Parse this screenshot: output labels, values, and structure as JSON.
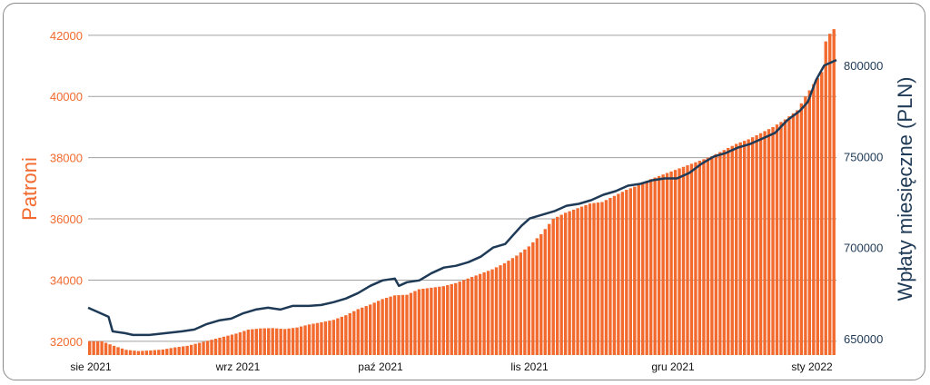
{
  "chart_data": {
    "type": "bar+line",
    "x_range": [
      "2021-08-01",
      "2022-01-31"
    ],
    "x_tick_labels": [
      "sie 2021",
      "wrz 2021",
      "paź 2021",
      "lis 2021",
      "gru 2021",
      "sty 2022"
    ],
    "y_left": {
      "label": "Patroni",
      "range": [
        31550,
        42500
      ],
      "ticks": [
        32000,
        34000,
        36000,
        38000,
        40000,
        42000
      ]
    },
    "y_right": {
      "label": "Wpłaty miesięczne (PLN)",
      "range": [
        641000,
        825000
      ],
      "ticks": [
        650000,
        700000,
        750000,
        800000
      ]
    },
    "grid": "horizontal",
    "colors": {
      "bars": "#f26a2e",
      "line": "#1f3a56",
      "grid": "#a0a0a0"
    },
    "series": [
      {
        "axis": "left",
        "kind": "bar",
        "points": [
          [
            "2021-08-01",
            32000
          ],
          [
            "2021-08-04",
            32000
          ],
          [
            "2021-08-07",
            31850
          ],
          [
            "2021-08-10",
            31720
          ],
          [
            "2021-08-13",
            31680
          ],
          [
            "2021-08-16",
            31700
          ],
          [
            "2021-08-19",
            31730
          ],
          [
            "2021-08-22",
            31800
          ],
          [
            "2021-08-25",
            31850
          ],
          [
            "2021-08-28",
            31950
          ],
          [
            "2021-08-31",
            32050
          ],
          [
            "2021-09-03",
            32150
          ],
          [
            "2021-09-06",
            32250
          ],
          [
            "2021-09-09",
            32380
          ],
          [
            "2021-09-12",
            32420
          ],
          [
            "2021-09-15",
            32430
          ],
          [
            "2021-09-18",
            32400
          ],
          [
            "2021-09-21",
            32450
          ],
          [
            "2021-09-24",
            32550
          ],
          [
            "2021-09-27",
            32620
          ],
          [
            "2021-09-30",
            32700
          ],
          [
            "2021-10-03",
            32850
          ],
          [
            "2021-10-06",
            33050
          ],
          [
            "2021-10-09",
            33200
          ],
          [
            "2021-10-12",
            33380
          ],
          [
            "2021-10-15",
            33500
          ],
          [
            "2021-10-18",
            33520
          ],
          [
            "2021-10-21",
            33700
          ],
          [
            "2021-10-24",
            33750
          ],
          [
            "2021-10-27",
            33800
          ],
          [
            "2021-10-30",
            33900
          ],
          [
            "2021-11-02",
            34050
          ],
          [
            "2021-11-05",
            34200
          ],
          [
            "2021-11-08",
            34350
          ],
          [
            "2021-11-11",
            34550
          ],
          [
            "2021-11-14",
            34800
          ],
          [
            "2021-11-17",
            35100
          ],
          [
            "2021-11-20",
            35500
          ],
          [
            "2021-11-23",
            36000
          ],
          [
            "2021-11-26",
            36200
          ],
          [
            "2021-11-29",
            36350
          ],
          [
            "2021-12-02",
            36500
          ],
          [
            "2021-12-05",
            36550
          ],
          [
            "2021-12-08",
            36750
          ],
          [
            "2021-12-11",
            36950
          ],
          [
            "2021-12-14",
            37100
          ],
          [
            "2021-12-17",
            37300
          ],
          [
            "2021-12-20",
            37450
          ],
          [
            "2021-12-23",
            37600
          ],
          [
            "2021-12-26",
            37750
          ],
          [
            "2021-12-29",
            37900
          ],
          [
            "2022-01-01",
            38050
          ],
          [
            "2022-01-04",
            38250
          ],
          [
            "2022-01-07",
            38450
          ],
          [
            "2022-01-10",
            38600
          ],
          [
            "2022-01-13",
            38800
          ],
          [
            "2022-01-16",
            39000
          ],
          [
            "2022-01-19",
            39250
          ],
          [
            "2022-01-22",
            39550
          ],
          [
            "2022-01-24",
            40000
          ],
          [
            "2022-01-26",
            40400
          ],
          [
            "2022-01-28",
            40800
          ],
          [
            "2022-01-29",
            41800
          ],
          [
            "2022-01-30",
            42050
          ],
          [
            "2022-01-31",
            42200
          ]
        ]
      },
      {
        "axis": "right",
        "kind": "line",
        "points": [
          [
            "2021-08-01",
            667000
          ],
          [
            "2021-08-03",
            665000
          ],
          [
            "2021-08-06",
            662000
          ],
          [
            "2021-08-07",
            654000
          ],
          [
            "2021-08-10",
            653000
          ],
          [
            "2021-08-12",
            652000
          ],
          [
            "2021-08-16",
            652000
          ],
          [
            "2021-08-20",
            653000
          ],
          [
            "2021-08-24",
            654000
          ],
          [
            "2021-08-27",
            655000
          ],
          [
            "2021-08-30",
            658000
          ],
          [
            "2021-09-02",
            660000
          ],
          [
            "2021-09-05",
            661000
          ],
          [
            "2021-09-08",
            664000
          ],
          [
            "2021-09-11",
            666000
          ],
          [
            "2021-09-14",
            667000
          ],
          [
            "2021-09-17",
            666000
          ],
          [
            "2021-09-20",
            668000
          ],
          [
            "2021-09-24",
            668000
          ],
          [
            "2021-09-27",
            668500
          ],
          [
            "2021-09-30",
            670000
          ],
          [
            "2021-10-03",
            672000
          ],
          [
            "2021-10-06",
            675000
          ],
          [
            "2021-10-09",
            679000
          ],
          [
            "2021-10-12",
            682000
          ],
          [
            "2021-10-15",
            683000
          ],
          [
            "2021-10-16",
            679000
          ],
          [
            "2021-10-18",
            681000
          ],
          [
            "2021-10-21",
            682000
          ],
          [
            "2021-10-24",
            686000
          ],
          [
            "2021-10-27",
            689000
          ],
          [
            "2021-10-30",
            690000
          ],
          [
            "2021-11-02",
            692000
          ],
          [
            "2021-11-05",
            695000
          ],
          [
            "2021-11-08",
            700000
          ],
          [
            "2021-11-11",
            702000
          ],
          [
            "2021-11-13",
            707000
          ],
          [
            "2021-11-15",
            712000
          ],
          [
            "2021-11-17",
            716000
          ],
          [
            "2021-11-20",
            718000
          ],
          [
            "2021-11-23",
            720000
          ],
          [
            "2021-11-26",
            723000
          ],
          [
            "2021-11-29",
            724000
          ],
          [
            "2021-12-02",
            726000
          ],
          [
            "2021-12-05",
            729000
          ],
          [
            "2021-12-08",
            731000
          ],
          [
            "2021-12-11",
            734000
          ],
          [
            "2021-12-14",
            735000
          ],
          [
            "2021-12-17",
            737000
          ],
          [
            "2021-12-20",
            738000
          ],
          [
            "2021-12-23",
            738000
          ],
          [
            "2021-12-26",
            741000
          ],
          [
            "2021-12-29",
            746000
          ],
          [
            "2022-01-01",
            750000
          ],
          [
            "2022-01-04",
            752000
          ],
          [
            "2022-01-07",
            755000
          ],
          [
            "2022-01-10",
            757000
          ],
          [
            "2022-01-13",
            760000
          ],
          [
            "2022-01-16",
            763000
          ],
          [
            "2022-01-19",
            770000
          ],
          [
            "2022-01-22",
            775000
          ],
          [
            "2022-01-24",
            780000
          ],
          [
            "2022-01-26",
            792000
          ],
          [
            "2022-01-28",
            800000
          ],
          [
            "2022-01-31",
            803000
          ]
        ]
      }
    ]
  }
}
